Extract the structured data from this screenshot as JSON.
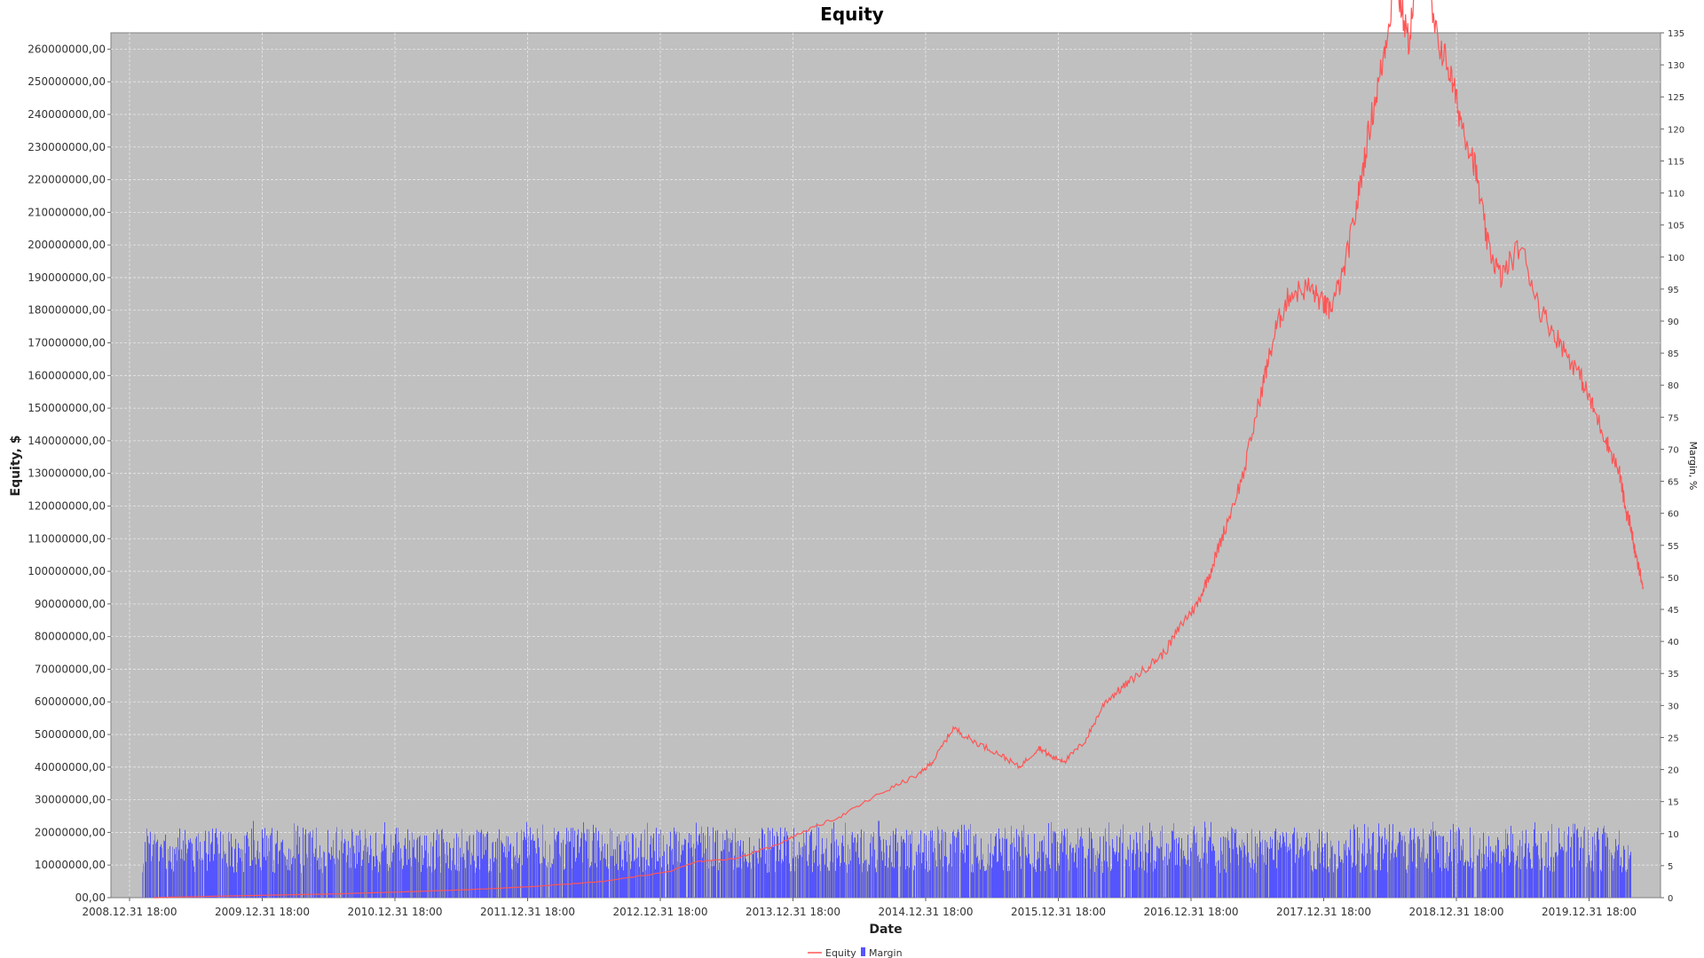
{
  "chart_data": {
    "type": "line",
    "title": "Equity",
    "xlabel": "Date",
    "ylabel": "Equity, $",
    "y2label": "Margin, %",
    "x_ticks": [
      "2008.12.31 18:00",
      "2009.12.31 18:00",
      "2010.12.31 18:00",
      "2011.12.31 18:00",
      "2012.12.31 18:00",
      "2013.12.31 18:00",
      "2014.12.31 18:00",
      "2015.12.31 18:00",
      "2016.12.31 18:00",
      "2017.12.31 18:00",
      "2018.12.31 18:00",
      "2019.12.31 18:00"
    ],
    "ylim": [
      0,
      265000000
    ],
    "y_ticks": [
      {
        "value": 0,
        "label": "00,00"
      },
      {
        "value": 10000000,
        "label": "10000000,00"
      },
      {
        "value": 20000000,
        "label": "20000000,00"
      },
      {
        "value": 30000000,
        "label": "30000000,00"
      },
      {
        "value": 40000000,
        "label": "40000000,00"
      },
      {
        "value": 50000000,
        "label": "50000000,00"
      },
      {
        "value": 60000000,
        "label": "60000000,00"
      },
      {
        "value": 70000000,
        "label": "70000000,00"
      },
      {
        "value": 80000000,
        "label": "80000000,00"
      },
      {
        "value": 90000000,
        "label": "90000000,00"
      },
      {
        "value": 100000000,
        "label": "100000000,00"
      },
      {
        "value": 110000000,
        "label": "110000000,00"
      },
      {
        "value": 120000000,
        "label": "120000000,00"
      },
      {
        "value": 130000000,
        "label": "130000000,00"
      },
      {
        "value": 140000000,
        "label": "140000000,00"
      },
      {
        "value": 150000000,
        "label": "150000000,00"
      },
      {
        "value": 160000000,
        "label": "160000000,00"
      },
      {
        "value": 170000000,
        "label": "170000000,00"
      },
      {
        "value": 180000000,
        "label": "180000000,00"
      },
      {
        "value": 190000000,
        "label": "190000000,00"
      },
      {
        "value": 200000000,
        "label": "200000000,00"
      },
      {
        "value": 210000000,
        "label": "210000000,00"
      },
      {
        "value": 220000000,
        "label": "220000000,00"
      },
      {
        "value": 230000000,
        "label": "230000000,00"
      },
      {
        "value": 240000000,
        "label": "240000000,00"
      },
      {
        "value": 250000000,
        "label": "250000000,00"
      },
      {
        "value": 260000000,
        "label": "260000000,00"
      }
    ],
    "y2lim": [
      0,
      135
    ],
    "y2_ticks": [
      0,
      5,
      10,
      15,
      20,
      25,
      30,
      35,
      40,
      45,
      50,
      55,
      60,
      65,
      70,
      75,
      80,
      85,
      90,
      95,
      100,
      105,
      110,
      115,
      120,
      125,
      130,
      135
    ],
    "grid": true,
    "legend_position": "bottom-center",
    "series": [
      {
        "name": "Equity",
        "type": "line",
        "axis": "left",
        "color": "#ff5555",
        "x": [
          2009.09,
          2009.5,
          2010.0,
          2010.5,
          2011.0,
          2011.5,
          2012.0,
          2012.5,
          2013.0,
          2013.2,
          2013.5,
          2013.8,
          2014.0,
          2014.3,
          2014.6,
          2014.9,
          2015.0,
          2015.15,
          2015.3,
          2015.5,
          2015.65,
          2015.8,
          2015.9,
          2016.0,
          2016.15,
          2016.3,
          2016.45,
          2016.6,
          2016.75,
          2016.9,
          2017.0,
          2017.1,
          2017.2,
          2017.35,
          2017.5,
          2017.6,
          2017.7,
          2017.85,
          2017.95,
          2018.0,
          2018.1,
          2018.2,
          2018.3,
          2018.4,
          2018.5,
          2018.6,
          2018.7,
          2018.8,
          2018.9,
          2019.0,
          2019.1,
          2019.2,
          2019.3,
          2019.45,
          2019.6,
          2019.75,
          2019.9,
          2020.0,
          2020.1,
          2020.2,
          2020.25,
          2020.28,
          2020.32,
          2020.38
        ],
        "values": [
          0,
          400000,
          800000,
          1200000,
          1800000,
          2500000,
          3500000,
          5000000,
          8000000,
          11000000,
          12000000,
          16000000,
          20000000,
          25000000,
          32000000,
          38000000,
          42000000,
          52000000,
          48000000,
          44000000,
          40000000,
          46000000,
          43000000,
          42000000,
          48000000,
          60000000,
          65000000,
          70000000,
          75000000,
          85000000,
          90000000,
          100000000,
          112000000,
          130000000,
          158000000,
          175000000,
          185000000,
          187000000,
          182000000,
          180000000,
          190000000,
          210000000,
          235000000,
          255000000,
          282000000,
          262000000,
          295000000,
          265000000,
          255000000,
          238000000,
          225000000,
          200000000,
          190000000,
          200000000,
          180000000,
          170000000,
          160000000,
          150000000,
          140000000,
          130000000,
          118000000,
          115000000,
          105000000,
          95000000
        ]
      },
      {
        "name": "Margin",
        "type": "bar",
        "axis": "right",
        "color": "#5555ff",
        "typical_range": [
          0,
          11
        ],
        "peak": 12
      }
    ]
  }
}
